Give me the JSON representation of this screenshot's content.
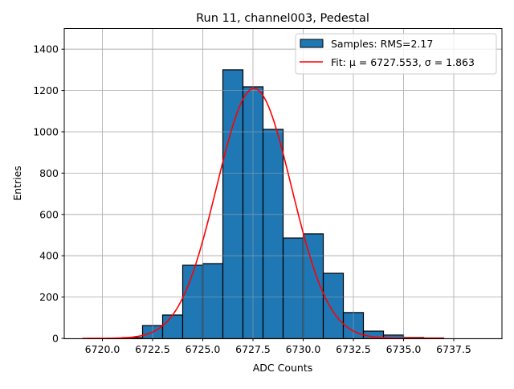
{
  "chart_data": {
    "type": "bar",
    "title": "Run 11, channel003, Pedestal",
    "xlabel": "ADC Counts",
    "ylabel": "Entries",
    "xlim": [
      6718.1,
      6739.9
    ],
    "ylim": [
      0,
      1500
    ],
    "grid": true,
    "legend_placement": "top-right",
    "x_ticks": [
      "6720.0",
      "6722.5",
      "6725.0",
      "6727.5",
      "6730.0",
      "6732.5",
      "6735.0",
      "6737.5"
    ],
    "y_ticks": [
      "0",
      "200",
      "400",
      "600",
      "800",
      "1000",
      "1200",
      "1400"
    ],
    "bin_edges": [
      6721,
      6722,
      6723,
      6724,
      6725,
      6726,
      6727,
      6728,
      6729,
      6730,
      6731,
      6732,
      6733,
      6734,
      6735,
      6736,
      6737
    ],
    "values": [
      4,
      62,
      113,
      354,
      362,
      1300,
      1218,
      1012,
      486,
      506,
      315,
      125,
      35,
      16,
      4,
      2
    ],
    "bar_color": "#1f77b4",
    "series": [
      {
        "name": "Samples: RMS=2.17",
        "kind": "histogram",
        "color": "#1f77b4"
      },
      {
        "name": "Fit: μ = 6727.553, σ = 1.863",
        "kind": "gaussian",
        "color": "#ff0000",
        "mu": 6727.553,
        "sigma": 1.863,
        "amplitude": 1210,
        "x_range": [
          6719,
          6737
        ]
      }
    ]
  }
}
